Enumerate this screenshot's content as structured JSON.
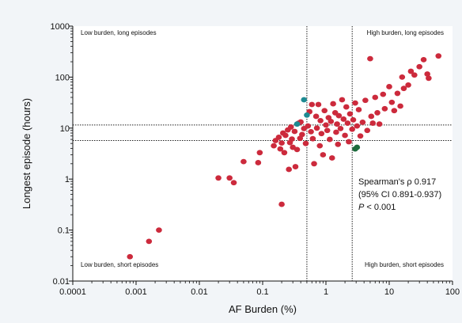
{
  "chart_data": {
    "type": "scatter",
    "title": "",
    "xlabel": "AF Burden (%)",
    "ylabel": "Longest episode (hours)",
    "x_scale": "log",
    "y_scale": "log",
    "xlim": [
      0.0001,
      100
    ],
    "ylim": [
      0.01,
      1000
    ],
    "x_ticks": [
      "0.0001",
      "0.001",
      "0.01",
      "0.1",
      "1",
      "10",
      "100"
    ],
    "y_ticks": [
      "0.01",
      "0.1",
      "1",
      "10",
      "100",
      "1000"
    ],
    "grid": false,
    "reference_lines": {
      "vertical": [
        0.5,
        2.6
      ],
      "horizontal": [
        5.7,
        11.5
      ]
    },
    "quadrant_labels": {
      "top_left": "Low burden, long episodes",
      "top_right": "High burden, long episodes",
      "bottom_left": "Low burden, short episodes",
      "bottom_right": "High burden, short episodes"
    },
    "annotation": {
      "line1": "Spearman's ρ 0.917",
      "line2": "(95% CI 0.891-0.937)",
      "line3_italic": "P",
      "line3_rest": " < 0.001"
    },
    "colors": {
      "main": "#cc2a3c",
      "teal": "#1d8a92",
      "green": "#1c6b3c"
    },
    "series": [
      {
        "color": "main",
        "points": [
          [
            0.0008,
            0.03
          ],
          [
            0.0016,
            0.06
          ],
          [
            0.0023,
            0.1
          ],
          [
            0.02,
            1.05
          ],
          [
            0.03,
            1.05
          ],
          [
            0.035,
            0.85
          ],
          [
            0.05,
            2.2
          ],
          [
            0.085,
            2.1
          ],
          [
            0.09,
            3.3
          ],
          [
            0.15,
            4.5
          ],
          [
            0.16,
            5.7
          ],
          [
            0.18,
            6.6
          ],
          [
            0.19,
            3.9
          ],
          [
            0.2,
            0.32
          ],
          [
            0.2,
            5.1
          ],
          [
            0.21,
            8.0
          ],
          [
            0.22,
            3.3
          ],
          [
            0.23,
            7.2
          ],
          [
            0.25,
            9.2
          ],
          [
            0.26,
            1.55
          ],
          [
            0.27,
            5.2
          ],
          [
            0.28,
            10.5
          ],
          [
            0.29,
            6.1
          ],
          [
            0.3,
            4.2
          ],
          [
            0.32,
            8.6
          ],
          [
            0.33,
            1.75
          ],
          [
            0.35,
            3.8
          ],
          [
            0.37,
            12.5
          ],
          [
            0.39,
            6.3
          ],
          [
            0.4,
            13.2
          ],
          [
            0.42,
            7.5
          ],
          [
            0.45,
            9.8
          ],
          [
            0.48,
            5.0
          ],
          [
            0.52,
            11.0
          ],
          [
            0.55,
            21.0
          ],
          [
            0.58,
            8.5
          ],
          [
            0.6,
            29.0
          ],
          [
            0.62,
            6.2
          ],
          [
            0.65,
            2.0
          ],
          [
            0.7,
            17.0
          ],
          [
            0.72,
            10.0
          ],
          [
            0.76,
            29.0
          ],
          [
            0.8,
            4.5
          ],
          [
            0.82,
            14.0
          ],
          [
            0.85,
            7.8
          ],
          [
            0.9,
            3.0
          ],
          [
            0.95,
            22.0
          ],
          [
            1.0,
            11.5
          ],
          [
            1.05,
            9.0
          ],
          [
            1.1,
            16.0
          ],
          [
            1.15,
            6.0
          ],
          [
            1.2,
            13.5
          ],
          [
            1.25,
            2.6
          ],
          [
            1.3,
            30.0
          ],
          [
            1.4,
            20.0
          ],
          [
            1.45,
            8.3
          ],
          [
            1.5,
            12.0
          ],
          [
            1.55,
            4.8
          ],
          [
            1.6,
            17.5
          ],
          [
            1.7,
            9.8
          ],
          [
            1.8,
            36.0
          ],
          [
            1.9,
            15.0
          ],
          [
            2.0,
            7.2
          ],
          [
            2.1,
            26.0
          ],
          [
            2.2,
            12.5
          ],
          [
            2.3,
            5.4
          ],
          [
            2.4,
            19.0
          ],
          [
            2.6,
            9.5
          ],
          [
            2.7,
            14.5
          ],
          [
            2.9,
            31.0
          ],
          [
            3.1,
            11.0
          ],
          [
            3.3,
            23.0
          ],
          [
            3.5,
            7.0
          ],
          [
            3.8,
            13.0
          ],
          [
            4.2,
            35.0
          ],
          [
            4.5,
            9.0
          ],
          [
            5.0,
            230.0
          ],
          [
            5.2,
            17.0
          ],
          [
            5.5,
            12.5
          ],
          [
            6.0,
            40.0
          ],
          [
            6.5,
            20.0
          ],
          [
            7.0,
            12.0
          ],
          [
            8.0,
            46.0
          ],
          [
            8.5,
            24.0
          ],
          [
            10.0,
            65.0
          ],
          [
            11.0,
            32.0
          ],
          [
            12.0,
            22.0
          ],
          [
            13.5,
            48.0
          ],
          [
            15.0,
            27.0
          ],
          [
            16.0,
            100.0
          ],
          [
            17.0,
            60.0
          ],
          [
            20.0,
            70.0
          ],
          [
            22.0,
            130.0
          ],
          [
            25.0,
            110.0
          ],
          [
            30.0,
            160.0
          ],
          [
            35.0,
            220.0
          ],
          [
            40.0,
            115.0
          ],
          [
            42.0,
            95.0
          ],
          [
            60.0,
            260.0
          ]
        ]
      },
      {
        "color": "teal",
        "points": [
          [
            0.45,
            36.0
          ],
          [
            0.5,
            18.0
          ],
          [
            0.35,
            12.0
          ]
        ]
      },
      {
        "color": "green",
        "points": [
          [
            2.9,
            3.9
          ],
          [
            3.1,
            4.2
          ]
        ]
      }
    ]
  }
}
